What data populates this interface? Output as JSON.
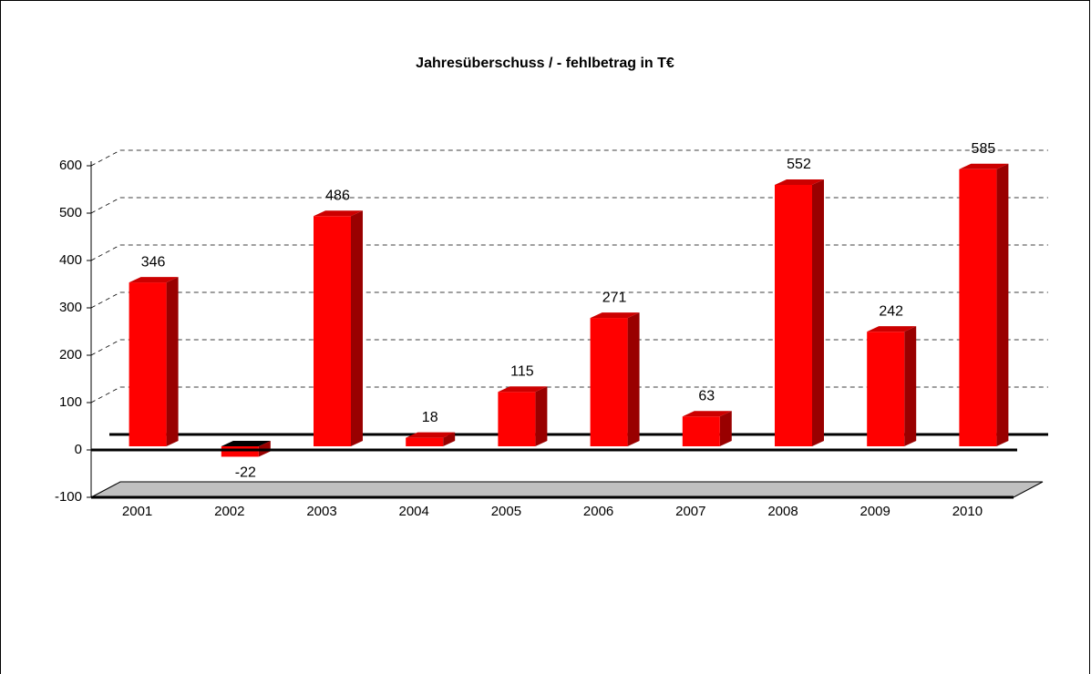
{
  "chart_data": {
    "type": "bar",
    "title": "Jahresüberschuss / - fehlbetrag in T€",
    "categories": [
      "2001",
      "2002",
      "2003",
      "2004",
      "2005",
      "2006",
      "2007",
      "2008",
      "2009",
      "2010"
    ],
    "values": [
      346,
      -22,
      486,
      18,
      115,
      271,
      63,
      552,
      242,
      585
    ],
    "color": "#ff0000",
    "ylim": [
      -100,
      600
    ],
    "yticks": [
      -100,
      0,
      100,
      200,
      300,
      400,
      500,
      600
    ],
    "grid": true
  }
}
